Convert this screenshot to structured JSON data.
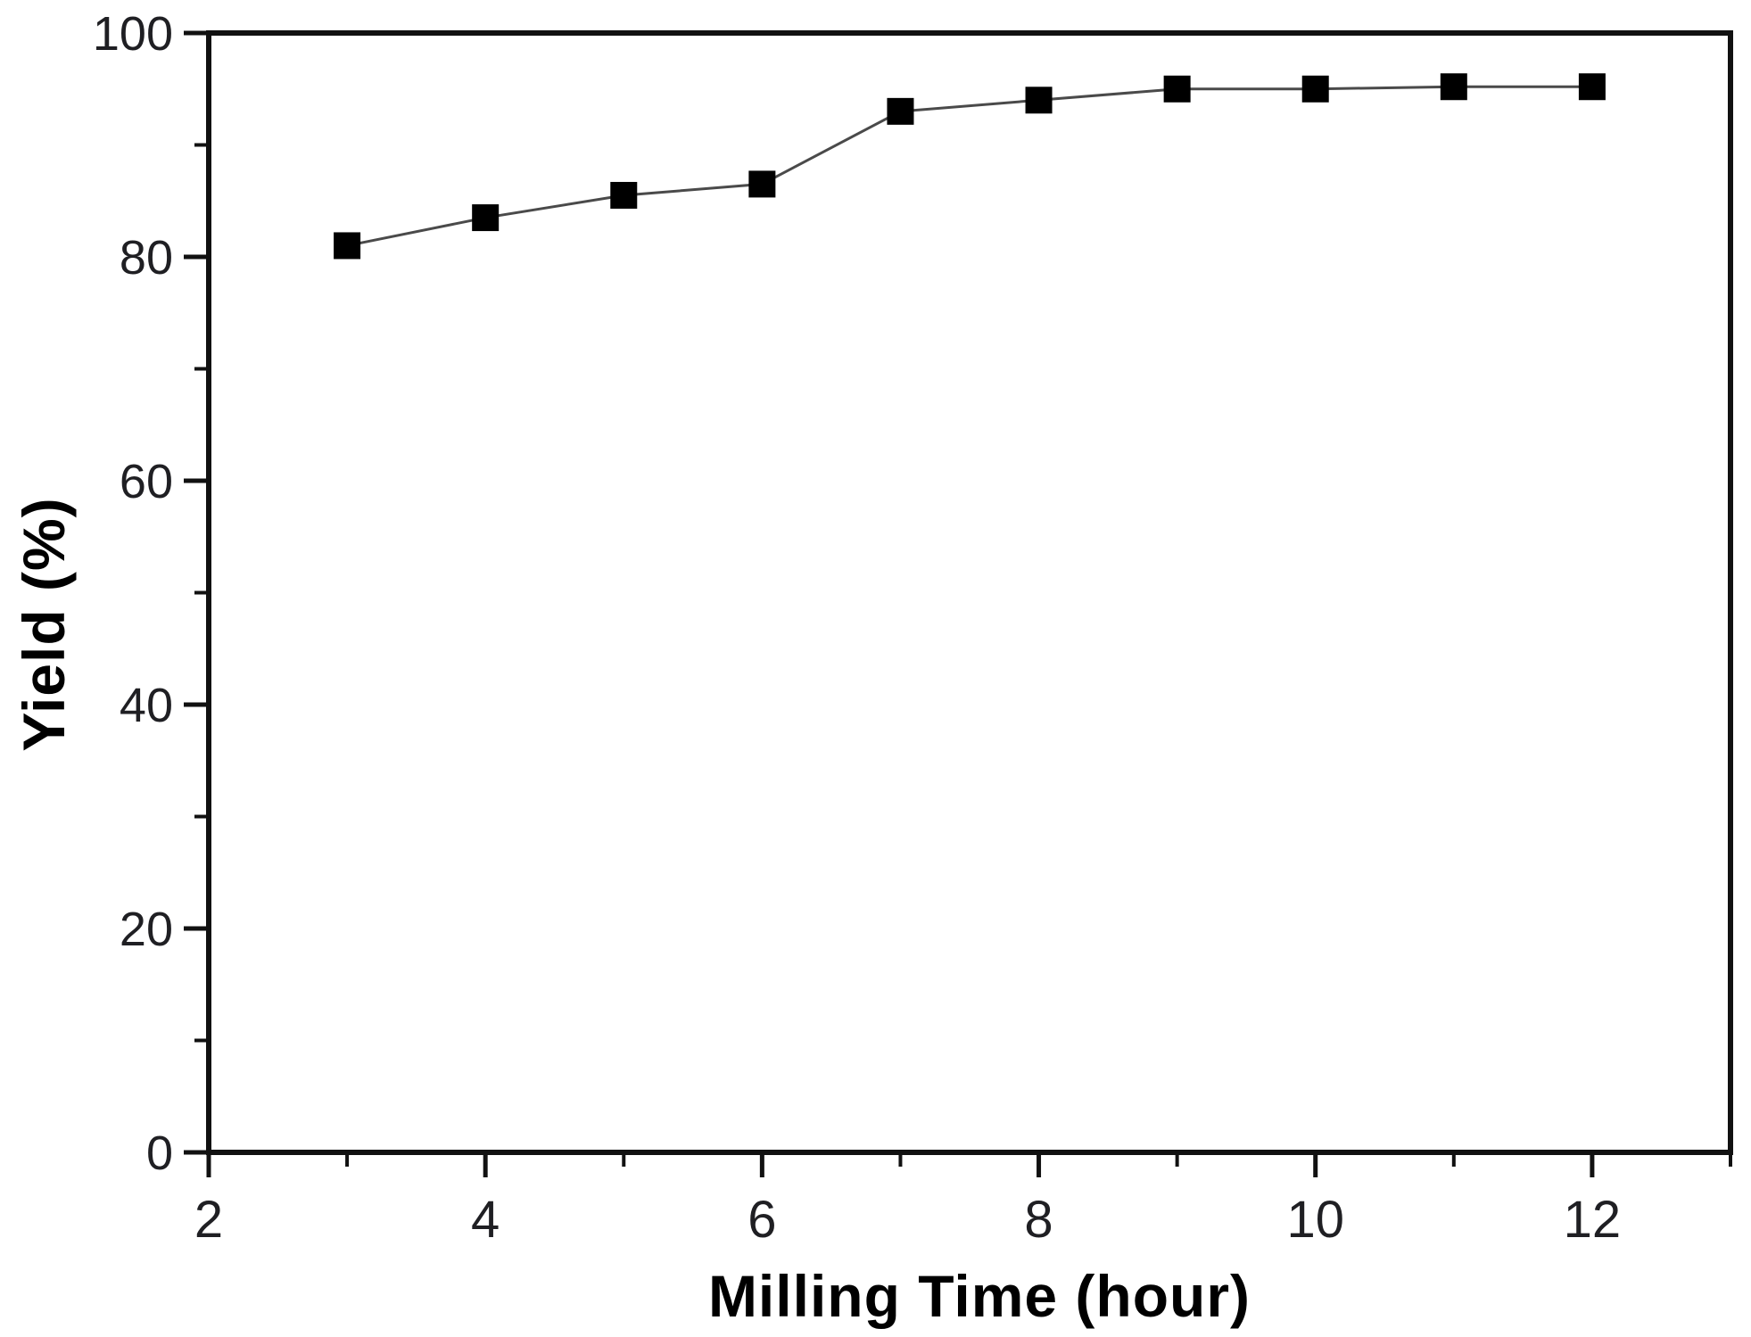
{
  "chart_data": {
    "type": "line",
    "title": "",
    "xlabel": "Milling Time (hour)",
    "ylabel": "Yield (%)",
    "x": [
      3,
      4,
      5,
      6,
      7,
      8,
      9,
      10,
      11,
      12
    ],
    "series": [
      {
        "name": "Yield",
        "values": [
          81,
          83.5,
          85.5,
          86.5,
          93,
          94,
          95,
          95,
          95.2,
          95.2
        ]
      }
    ],
    "xlim": [
      2,
      13
    ],
    "ylim": [
      0,
      100
    ],
    "x_major_ticks": [
      2,
      4,
      6,
      8,
      10,
      12
    ],
    "x_minor_ticks": [
      3,
      5,
      7,
      9,
      11,
      13
    ],
    "y_major_ticks": [
      0,
      20,
      40,
      60,
      80,
      100
    ],
    "y_minor_ticks": [
      10,
      30,
      50,
      70,
      90
    ],
    "grid": false,
    "legend": "none",
    "marker": "filled-square",
    "colors": {
      "marker": "#000000",
      "line": "#4a4a4a",
      "frame": "#111111",
      "text": "#1f1f23",
      "background": "#ffffff"
    }
  }
}
